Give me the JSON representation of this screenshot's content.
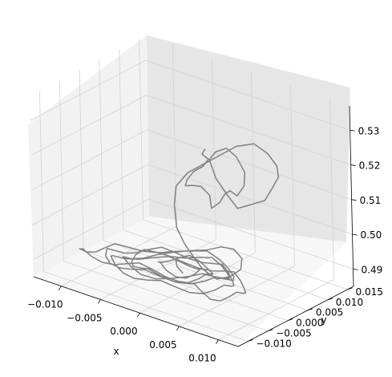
{
  "chart_data": {
    "type": "line",
    "projection": "3d",
    "title": "",
    "xlabel": "x",
    "ylabel": "y",
    "zlabel": "",
    "xlim": [
      -0.0135,
      0.0125
    ],
    "ylim": [
      -0.0125,
      0.0165
    ],
    "zlim": [
      0.485,
      0.537
    ],
    "x_ticks": [
      "−0.010",
      "−0.005",
      "0.000",
      "0.005",
      "0.010"
    ],
    "y_ticks": [
      "−0.010",
      "−0.005",
      "0.000",
      "0.005",
      "0.010",
      "0.015"
    ],
    "z_ticks": [
      "0.49",
      "0.50",
      "0.51",
      "0.52",
      "0.53"
    ],
    "grid": true,
    "legend": "none",
    "line_color": "#808080",
    "pane_colors": {
      "left": "#f2f2f2",
      "right": "#e6e6e6",
      "floor": "#f7f7f7"
    },
    "series": [
      {
        "note_points": "approximate random-walk trajectory in data units [x, y, z]",
        "points": [
          [
            -0.0005,
            0.0055,
            0.521
          ],
          [
            -0.0005,
            0.0048,
            0.52
          ],
          [
            0.0002,
            0.005,
            0.519
          ],
          [
            -0.0002,
            0.0044,
            0.517
          ],
          [
            -0.0012,
            0.004,
            0.515
          ],
          [
            -0.002,
            0.0038,
            0.512
          ],
          [
            -0.0018,
            0.003,
            0.511
          ],
          [
            -0.0008,
            0.0028,
            0.512
          ],
          [
            0.0005,
            0.0024,
            0.513
          ],
          [
            0.0015,
            0.0026,
            0.511
          ],
          [
            0.002,
            0.002,
            0.508
          ],
          [
            0.0028,
            0.0025,
            0.51
          ],
          [
            0.003,
            0.0034,
            0.512
          ],
          [
            0.0034,
            0.004,
            0.513
          ],
          [
            0.0042,
            0.0042,
            0.512
          ],
          [
            0.0048,
            0.0048,
            0.515
          ],
          [
            0.0044,
            0.0058,
            0.518
          ],
          [
            0.003,
            0.0065,
            0.521
          ],
          [
            0.0015,
            0.007,
            0.522
          ],
          [
            0.0002,
            0.0068,
            0.52
          ],
          [
            -0.0002,
            0.006,
            0.518
          ],
          [
            0.001,
            0.0052,
            0.514
          ],
          [
            0.0025,
            0.0048,
            0.511
          ],
          [
            0.004,
            0.0046,
            0.508
          ],
          [
            0.0055,
            0.005,
            0.51
          ],
          [
            0.007,
            0.0056,
            0.512
          ],
          [
            0.0078,
            0.006,
            0.516
          ],
          [
            0.0082,
            0.0068,
            0.519
          ],
          [
            0.0075,
            0.0078,
            0.521
          ],
          [
            0.006,
            0.0085,
            0.523
          ],
          [
            0.004,
            0.009,
            0.524
          ],
          [
            0.002,
            0.0085,
            0.522
          ],
          [
            0.0005,
            0.0075,
            0.519
          ],
          [
            -0.001,
            0.0062,
            0.516
          ],
          [
            -0.0025,
            0.005,
            0.513
          ],
          [
            -0.0035,
            0.004,
            0.509
          ],
          [
            -0.003,
            0.0025,
            0.505
          ],
          [
            -0.002,
            0.001,
            0.5
          ],
          [
            -0.0005,
            0.0,
            0.497
          ],
          [
            0.001,
            -0.0008,
            0.495
          ],
          [
            0.0025,
            -0.0015,
            0.493
          ],
          [
            0.004,
            -0.001,
            0.491
          ],
          [
            0.0052,
            0.0,
            0.492
          ],
          [
            0.006,
            0.0012,
            0.494
          ],
          [
            0.0055,
            0.0025,
            0.496
          ],
          [
            0.004,
            0.0034,
            0.497
          ],
          [
            0.0022,
            0.0038,
            0.496
          ],
          [
            0.0005,
            0.0034,
            0.494
          ],
          [
            -0.0012,
            0.0026,
            0.493
          ],
          [
            -0.0028,
            0.0014,
            0.492
          ],
          [
            -0.0042,
            0.0,
            0.491
          ],
          [
            -0.0052,
            -0.0012,
            0.49
          ],
          [
            -0.006,
            -0.0025,
            0.49
          ],
          [
            -0.0065,
            -0.0038,
            0.491
          ],
          [
            -0.0058,
            -0.005,
            0.492
          ],
          [
            -0.0045,
            -0.0058,
            0.491
          ],
          [
            -0.003,
            -0.0062,
            0.49
          ],
          [
            -0.0012,
            -0.006,
            0.49
          ],
          [
            0.0005,
            -0.0052,
            0.491
          ],
          [
            0.002,
            -0.004,
            0.492
          ],
          [
            0.0032,
            -0.0028,
            0.493
          ],
          [
            0.004,
            -0.0015,
            0.492
          ],
          [
            0.0046,
            -0.0002,
            0.491
          ],
          [
            0.005,
            0.0012,
            0.49
          ],
          [
            0.0044,
            0.0025,
            0.49
          ],
          [
            0.0032,
            0.0034,
            0.491
          ],
          [
            0.0018,
            0.004,
            0.492
          ],
          [
            0.0002,
            0.0042,
            0.493
          ],
          [
            -0.0015,
            0.0038,
            0.492
          ],
          [
            -0.0032,
            0.003,
            0.491
          ],
          [
            -0.0048,
            0.002,
            0.49
          ],
          [
            -0.0062,
            0.0008,
            0.49
          ],
          [
            -0.0075,
            -0.0005,
            0.491
          ],
          [
            -0.0085,
            -0.0018,
            0.492
          ],
          [
            -0.0092,
            -0.003,
            0.491
          ],
          [
            -0.0098,
            -0.0042,
            0.49
          ],
          [
            -0.0105,
            -0.005,
            0.49
          ],
          [
            -0.011,
            -0.0058,
            0.491
          ],
          [
            -0.0102,
            -0.0065,
            0.492
          ],
          [
            -0.009,
            -0.0068,
            0.491
          ],
          [
            -0.0078,
            -0.0065,
            0.49
          ],
          [
            -0.0065,
            -0.006,
            0.49
          ],
          [
            -0.0052,
            -0.0055,
            0.491
          ],
          [
            -0.0038,
            -0.005,
            0.492
          ],
          [
            -0.0022,
            -0.0046,
            0.491
          ],
          [
            -0.0008,
            -0.0044,
            0.49
          ],
          [
            0.0008,
            -0.0045,
            0.49
          ],
          [
            0.0022,
            -0.005,
            0.491
          ],
          [
            0.0035,
            -0.0056,
            0.492
          ],
          [
            0.0048,
            -0.0062,
            0.491
          ],
          [
            0.006,
            -0.0065,
            0.49
          ],
          [
            0.007,
            -0.006,
            0.49
          ],
          [
            0.0076,
            -0.005,
            0.491
          ],
          [
            0.008,
            -0.0038,
            0.492
          ],
          [
            0.0082,
            -0.0025,
            0.491
          ],
          [
            0.0078,
            -0.0012,
            0.49
          ],
          [
            0.007,
            0.0,
            0.49
          ],
          [
            0.006,
            0.001,
            0.491
          ],
          [
            0.0048,
            0.0018,
            0.492
          ],
          [
            0.0035,
            0.0022,
            0.491
          ],
          [
            0.002,
            0.002,
            0.49
          ],
          [
            0.0005,
            0.0014,
            0.49
          ],
          [
            -0.001,
            0.0006,
            0.491
          ],
          [
            -0.0025,
            -0.0002,
            0.492
          ],
          [
            -0.004,
            -0.001,
            0.491
          ],
          [
            -0.0054,
            -0.002,
            0.49
          ],
          [
            -0.0066,
            -0.0032,
            0.49
          ],
          [
            -0.0074,
            -0.0045,
            0.491
          ],
          [
            -0.007,
            -0.0058,
            0.492
          ],
          [
            -0.006,
            -0.0068,
            0.491
          ],
          [
            -0.0046,
            -0.0075,
            0.49
          ],
          [
            -0.003,
            -0.008,
            0.49
          ],
          [
            -0.0012,
            -0.0082,
            0.491
          ],
          [
            0.0005,
            -0.008,
            0.492
          ],
          [
            0.002,
            -0.0074,
            0.491
          ],
          [
            0.0034,
            -0.0066,
            0.49
          ],
          [
            0.0046,
            -0.0056,
            0.49
          ],
          [
            0.0055,
            -0.0044,
            0.491
          ],
          [
            0.006,
            -0.003,
            0.492
          ],
          [
            0.0062,
            -0.0016,
            0.491
          ],
          [
            0.0058,
            -0.0002,
            0.49
          ],
          [
            0.005,
            0.001,
            0.49
          ],
          [
            0.004,
            0.002,
            0.491
          ],
          [
            0.0028,
            0.0028,
            0.492
          ],
          [
            0.0015,
            0.0032,
            0.491
          ],
          [
            0.0,
            0.0034,
            0.49
          ],
          [
            -0.0015,
            0.0032,
            0.49
          ],
          [
            -0.003,
            0.0026,
            0.491
          ],
          [
            -0.0044,
            0.0018,
            0.492
          ],
          [
            -0.0056,
            0.0008,
            0.491
          ],
          [
            -0.0066,
            -0.0004,
            0.49
          ],
          [
            -0.0074,
            -0.0016,
            0.49
          ],
          [
            -0.008,
            -0.0028,
            0.491
          ],
          [
            -0.0084,
            -0.004,
            0.492
          ],
          [
            -0.008,
            -0.0052,
            0.491
          ],
          [
            -0.007,
            -0.006,
            0.49
          ],
          [
            -0.0056,
            -0.0064,
            0.49
          ],
          [
            -0.004,
            -0.0066,
            0.491
          ],
          [
            -0.0024,
            -0.0064,
            0.492
          ],
          [
            -0.0008,
            -0.0058,
            0.491
          ],
          [
            0.0008,
            -0.005,
            0.49
          ],
          [
            0.0022,
            -0.004,
            0.49
          ],
          [
            0.0034,
            -0.0028,
            0.491
          ],
          [
            0.0042,
            -0.0014,
            0.492
          ],
          [
            0.0046,
            0.0,
            0.491
          ],
          [
            0.0044,
            0.0014,
            0.49
          ],
          [
            0.0036,
            0.0026,
            0.49
          ],
          [
            0.0024,
            0.0034,
            0.491
          ],
          [
            0.001,
            0.0038,
            0.492
          ],
          [
            -0.0005,
            0.0036,
            0.491
          ],
          [
            -0.002,
            0.003,
            0.49
          ],
          [
            -0.0034,
            0.002,
            0.49
          ],
          [
            -0.0046,
            0.0008,
            0.491
          ],
          [
            -0.0054,
            -0.0006,
            0.492
          ],
          [
            -0.0058,
            -0.002,
            0.491
          ],
          [
            -0.0056,
            -0.0034,
            0.49
          ],
          [
            -0.0048,
            -0.0046,
            0.49
          ],
          [
            -0.0036,
            -0.0054,
            0.491
          ],
          [
            -0.0022,
            -0.0058,
            0.492
          ],
          [
            -0.0008,
            -0.0056,
            0.491
          ],
          [
            0.0006,
            -0.005,
            0.49
          ],
          [
            0.0018,
            -0.004,
            0.49
          ],
          [
            0.0026,
            -0.0028,
            0.491
          ],
          [
            0.003,
            -0.0014,
            0.492
          ],
          [
            0.003,
            0.0,
            0.491
          ],
          [
            0.0024,
            0.0012,
            0.49
          ],
          [
            0.0014,
            0.002,
            0.49
          ],
          [
            0.0002,
            0.0024,
            0.491
          ],
          [
            -0.001,
            0.0022,
            0.492
          ],
          [
            -0.002,
            0.0016,
            0.491
          ],
          [
            -0.0028,
            0.0006,
            0.49
          ],
          [
            -0.0032,
            -0.0006,
            0.49
          ],
          [
            -0.003,
            -0.0018,
            0.491
          ],
          [
            -0.0022,
            -0.0028,
            0.492
          ],
          [
            -0.0012,
            -0.0034,
            0.491
          ],
          [
            0.0,
            -0.0034,
            0.49
          ],
          [
            0.001,
            -0.0028,
            0.49
          ],
          [
            0.0016,
            -0.0018,
            0.491
          ],
          [
            0.0018,
            -0.0006,
            0.492
          ],
          [
            0.0014,
            0.0004,
            0.491
          ],
          [
            0.0006,
            0.001,
            0.49
          ],
          [
            -0.0004,
            0.001,
            0.49
          ],
          [
            -0.0012,
            0.0004,
            0.491
          ],
          [
            -0.0014,
            -0.0006,
            0.492
          ],
          [
            -0.0008,
            -0.0014,
            0.491
          ],
          [
            0.0,
            -0.0016,
            0.49
          ]
        ]
      }
    ]
  }
}
